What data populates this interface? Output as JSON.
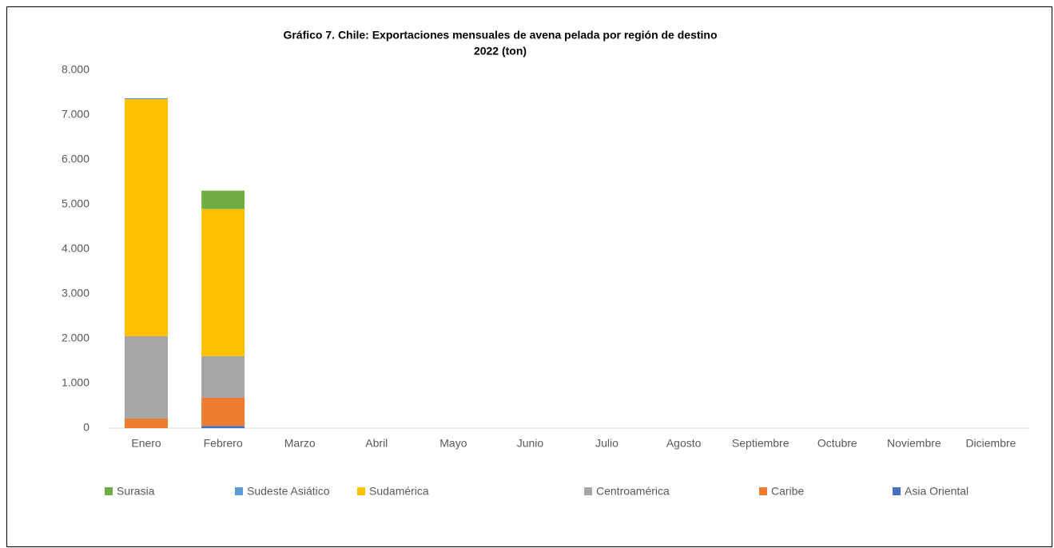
{
  "chart_data": {
    "type": "stacked_bar",
    "title": "Gráfico 7. Chile: Exportaciones mensuales de avena pelada por región de destino",
    "subtitle": "2022 (ton)",
    "categories": [
      "Enero",
      "Febrero",
      "Marzo",
      "Abril",
      "Mayo",
      "Junio",
      "Julio",
      "Agosto",
      "Septiembre",
      "Octubre",
      "Noviembre",
      "Diciembre"
    ],
    "series": [
      {
        "name": "Surasia",
        "color": "#70ad47",
        "values": [
          0,
          410,
          null,
          null,
          null,
          null,
          null,
          null,
          null,
          null,
          null,
          null
        ]
      },
      {
        "name": "Sudeste Asiático",
        "color": "#5b9bd5",
        "values": [
          20,
          0,
          null,
          null,
          null,
          null,
          null,
          null,
          null,
          null,
          null,
          null
        ]
      },
      {
        "name": "Sudamérica",
        "color": "#ffc000",
        "values": [
          5300,
          3290,
          null,
          null,
          null,
          null,
          null,
          null,
          null,
          null,
          null,
          null
        ]
      },
      {
        "name": "Centroamérica",
        "color": "#a5a5a5",
        "values": [
          1840,
          930,
          null,
          null,
          null,
          null,
          null,
          null,
          null,
          null,
          null,
          null
        ]
      },
      {
        "name": "Caribe",
        "color": "#ed7d31",
        "values": [
          215,
          630,
          null,
          null,
          null,
          null,
          null,
          null,
          null,
          null,
          null,
          null
        ]
      },
      {
        "name": "Asia Oriental",
        "color": "#4472c4",
        "values": [
          0,
          50,
          null,
          null,
          null,
          null,
          null,
          null,
          null,
          null,
          null,
          null
        ]
      }
    ],
    "ylim": [
      0,
      8000
    ],
    "yticks": [
      0,
      {
        "value": 1000,
        "label": "1.000"
      },
      {
        "value": 2000,
        "label": "2.000"
      },
      {
        "value": 3000,
        "label": "3.000"
      },
      {
        "value": 4000,
        "label": "4.000"
      },
      {
        "value": 5000,
        "label": "5.000"
      },
      {
        "value": 6000,
        "label": "6.000"
      },
      {
        "value": 7000,
        "label": "7.000"
      },
      {
        "value": 8000,
        "label": "8.000"
      }
    ],
    "grid": false,
    "legend": "bottom"
  }
}
